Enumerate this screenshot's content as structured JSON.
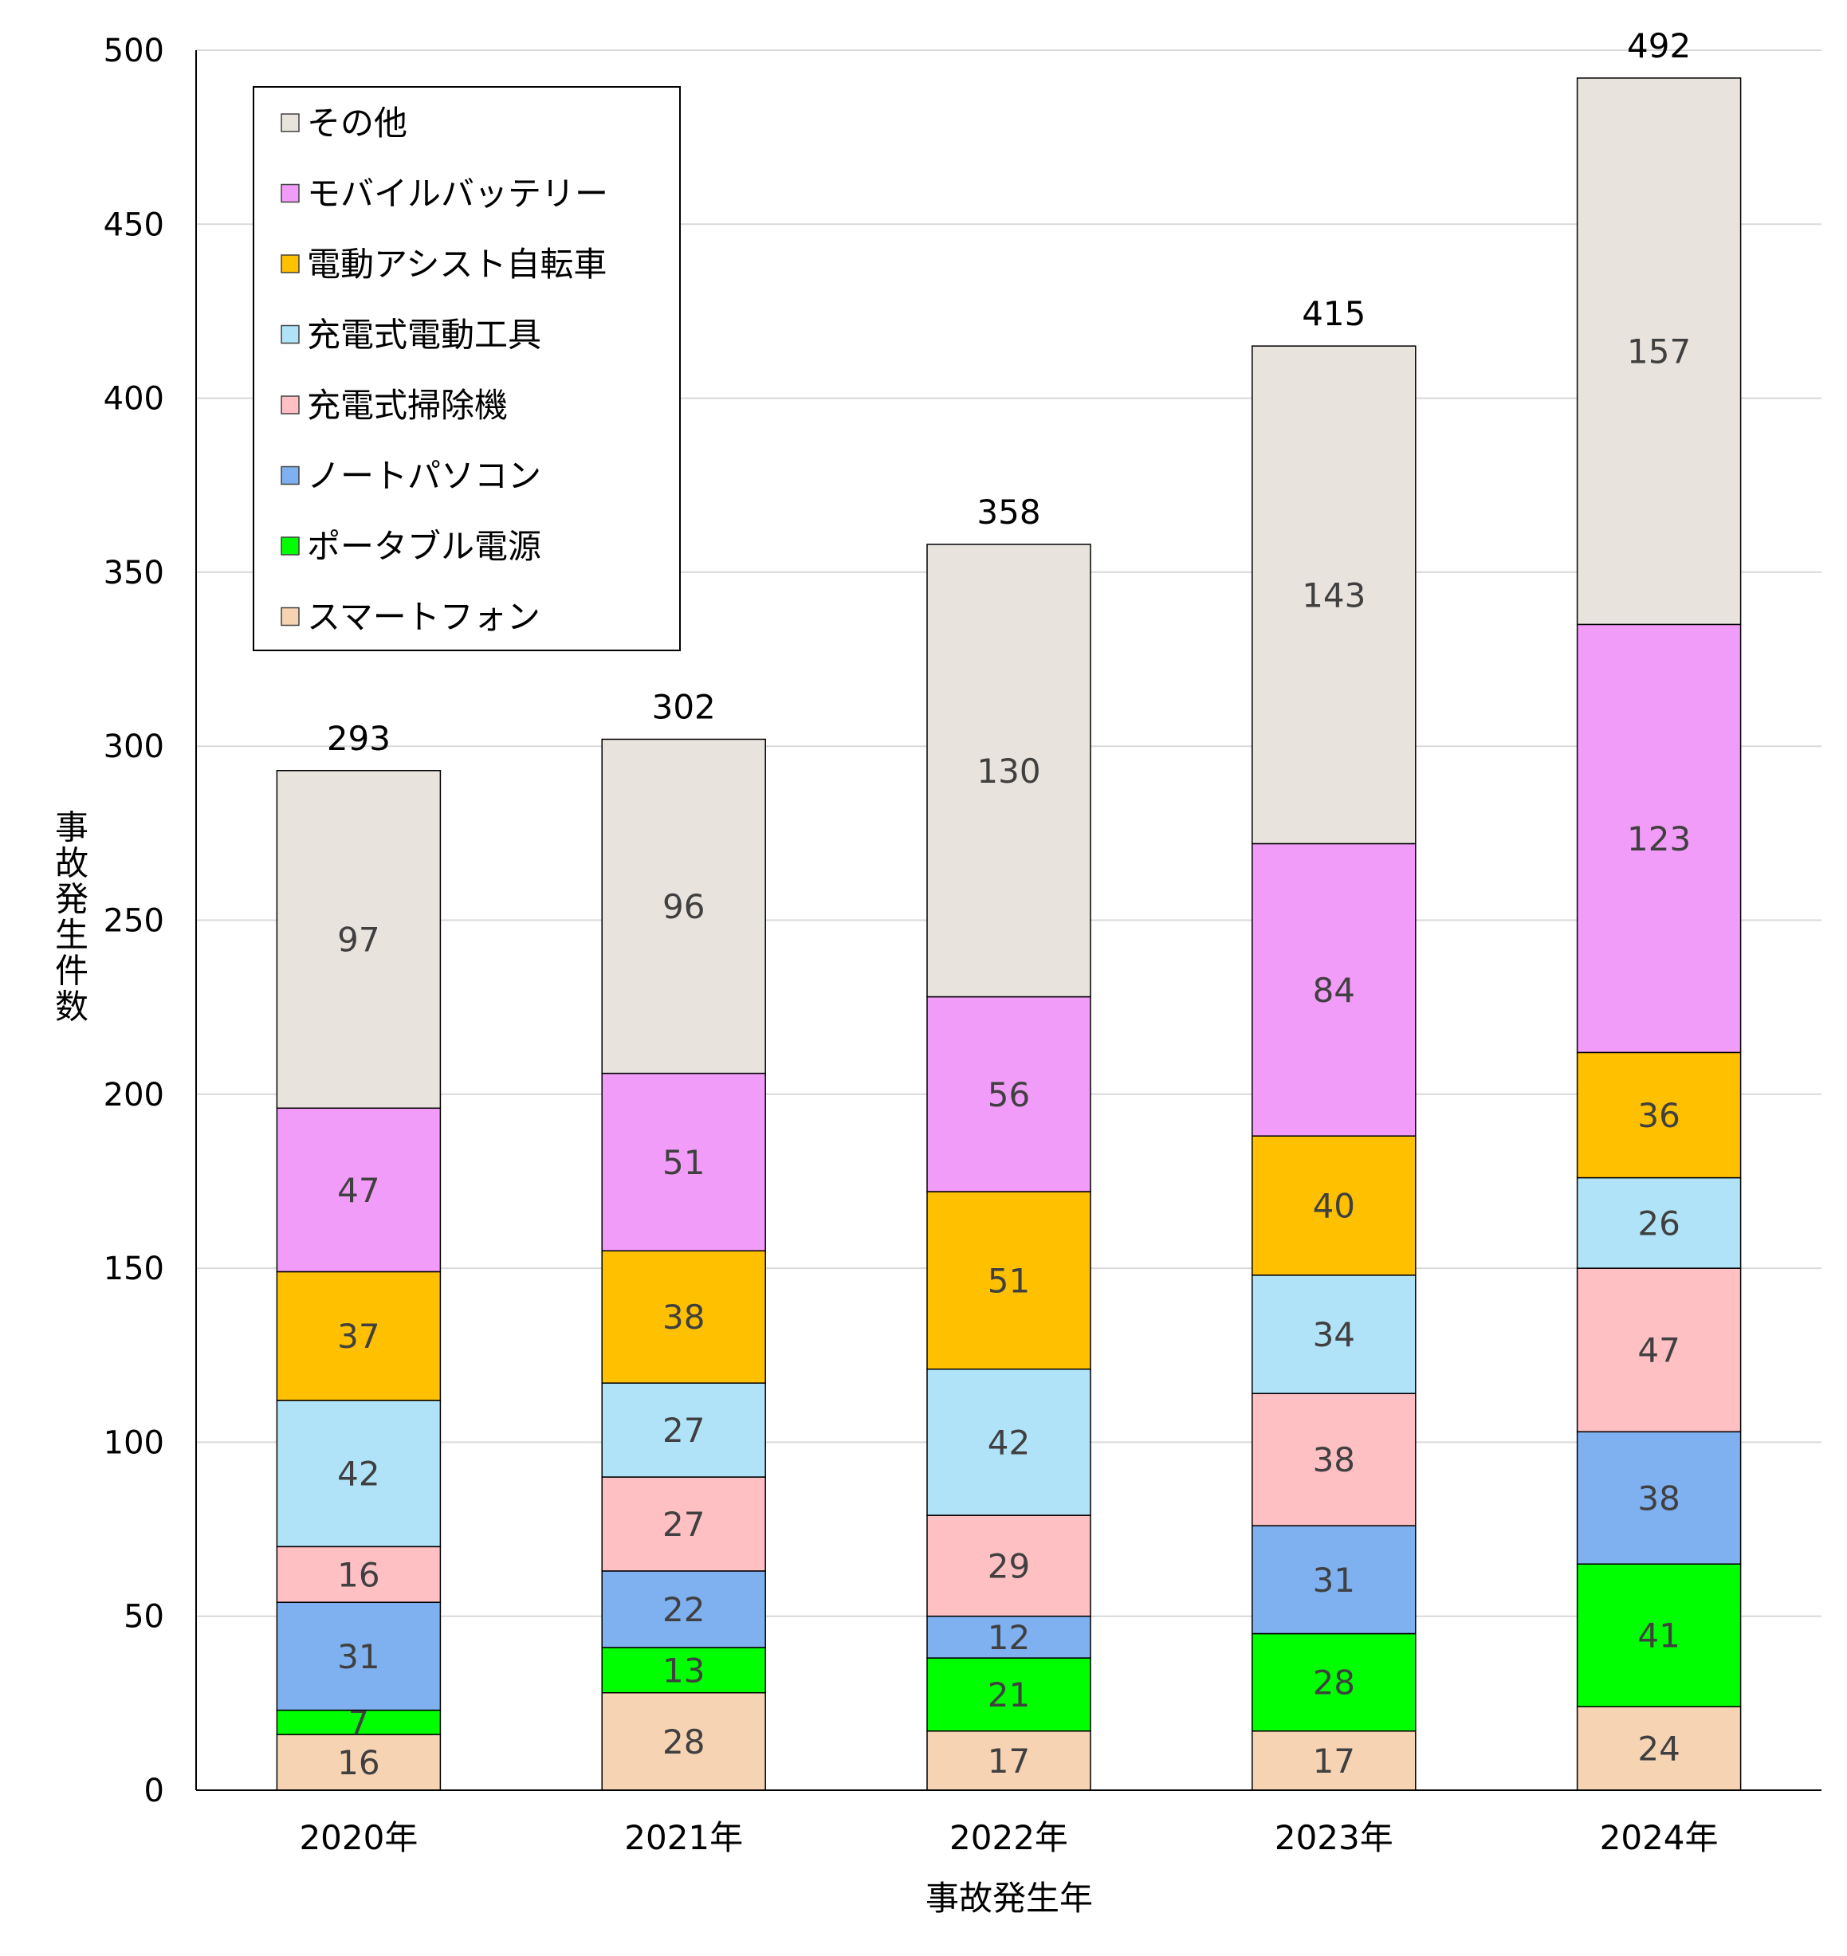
{
  "chart_data": {
    "type": "bar",
    "stacked": true,
    "title": "",
    "xlabel": "事故発生年",
    "ylabel": "事故発生件数",
    "ylim": [
      0,
      500
    ],
    "yticks": [
      0,
      50,
      100,
      150,
      200,
      250,
      300,
      350,
      400,
      450,
      500
    ],
    "grid": true,
    "legend_position": "top-left",
    "categories": [
      "2020年",
      "2021年",
      "2022年",
      "2023年",
      "2024年"
    ],
    "totals": [
      293,
      302,
      358,
      415,
      492
    ],
    "series": [
      {
        "name": "スマートフォン",
        "color": "#F5D3B3",
        "values": [
          16,
          28,
          17,
          17,
          24
        ]
      },
      {
        "name": "ポータブル電源",
        "color": "#00FF00",
        "values": [
          7,
          13,
          21,
          28,
          41
        ]
      },
      {
        "name": "ノートパソコン",
        "color": "#7FB1F0",
        "values": [
          31,
          22,
          12,
          31,
          38
        ]
      },
      {
        "name": "充電式掃除機",
        "color": "#FFC0C4",
        "values": [
          16,
          27,
          29,
          38,
          47
        ]
      },
      {
        "name": "充電式電動工具",
        "color": "#B0E3F8",
        "values": [
          42,
          27,
          42,
          34,
          26
        ]
      },
      {
        "name": "電動アシスト自転車",
        "color": "#FFC000",
        "values": [
          37,
          38,
          51,
          40,
          36
        ]
      },
      {
        "name": "モバイルバッテリー",
        "color": "#F19CF8",
        "values": [
          47,
          51,
          56,
          84,
          123
        ]
      },
      {
        "name": "その他",
        "color": "#E8E3DD",
        "values": [
          97,
          96,
          130,
          143,
          157
        ]
      }
    ]
  }
}
